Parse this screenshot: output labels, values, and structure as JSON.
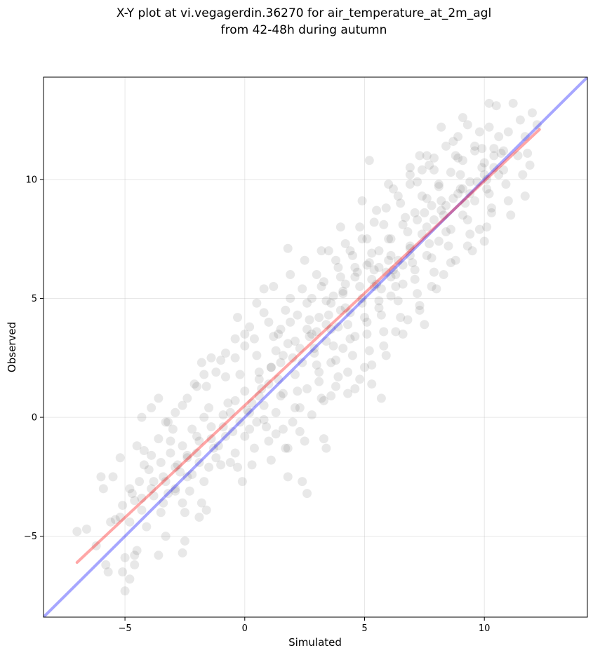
{
  "chart_data": {
    "type": "scatter",
    "title_line1": "X-Y plot at vi.vegagerdin.36270 for air_temperature_at_2m_agl",
    "title_line2": "from 42-48h during autumn",
    "xlabel": "Simulated",
    "ylabel": "Observed",
    "xlim": [
      -8.4,
      14.3
    ],
    "ylim": [
      -8.4,
      14.3
    ],
    "xticks": [
      -5,
      0,
      5,
      10
    ],
    "yticks": [
      -5,
      0,
      5,
      10
    ],
    "xtick_labels": [
      "−5",
      "0",
      "5",
      "10"
    ],
    "ytick_labels": [
      "−5",
      "0",
      "5",
      "10"
    ],
    "grid": true,
    "point_color": "#000000",
    "point_alpha": 0.09,
    "one_to_one_line": {
      "color": "#0000ff",
      "x": [
        -8.4,
        14.3
      ],
      "y": [
        -8.4,
        14.3
      ]
    },
    "fit_line": {
      "color": "#ff0000",
      "x": [
        -7.0,
        12.3
      ],
      "y": [
        -6.1,
        12.1
      ]
    },
    "points": [
      [
        -7.0,
        -4.8
      ],
      [
        -6.6,
        -4.7
      ],
      [
        -6.2,
        -5.4
      ],
      [
        -5.8,
        -6.2
      ],
      [
        -5.7,
        -6.5
      ],
      [
        -6.0,
        -2.5
      ],
      [
        -5.5,
        -2.5
      ],
      [
        -5.9,
        -3.0
      ],
      [
        -5.6,
        -4.4
      ],
      [
        -5.2,
        -4.2
      ],
      [
        -5.0,
        -5.9
      ],
      [
        -5.1,
        -6.5
      ],
      [
        -4.8,
        -6.8
      ],
      [
        -5.0,
        -7.3
      ],
      [
        -4.6,
        -6.2
      ],
      [
        -4.5,
        -5.6
      ],
      [
        -4.6,
        -5.8
      ],
      [
        -5.2,
        -1.7
      ],
      [
        -4.8,
        -3.0
      ],
      [
        -4.6,
        -3.5
      ],
      [
        -4.5,
        -1.2
      ],
      [
        -4.3,
        -3.4
      ],
      [
        -4.1,
        -4.6
      ],
      [
        -4.2,
        -1.4
      ],
      [
        -4.0,
        -2.2
      ],
      [
        -3.9,
        -3.0
      ],
      [
        -3.8,
        -2.7
      ],
      [
        -4.3,
        0.0
      ],
      [
        -3.9,
        0.4
      ],
      [
        -3.6,
        0.8
      ],
      [
        -3.5,
        -1.9
      ],
      [
        -3.4,
        -2.5
      ],
      [
        -3.6,
        -5.8
      ],
      [
        -3.3,
        -5.0
      ],
      [
        -3.5,
        -4.0
      ],
      [
        -3.2,
        -3.2
      ],
      [
        -3.1,
        -1.0
      ],
      [
        -3.3,
        -0.2
      ],
      [
        -3.0,
        -0.5
      ],
      [
        -3.1,
        -1.5
      ],
      [
        -2.8,
        -2.0
      ],
      [
        -2.9,
        -3.0
      ],
      [
        -2.6,
        -3.6
      ],
      [
        -2.5,
        -4.0
      ],
      [
        -2.7,
        -2.3
      ],
      [
        -2.4,
        -1.7
      ],
      [
        -2.6,
        -1.2
      ],
      [
        -2.5,
        -5.2
      ],
      [
        -2.6,
        -5.7
      ],
      [
        -2.3,
        -3.1
      ],
      [
        -2.2,
        -2.4
      ],
      [
        -2.0,
        -1.5
      ],
      [
        -2.2,
        -0.5
      ],
      [
        -2.0,
        -0.8
      ],
      [
        -1.8,
        -3.6
      ],
      [
        -1.7,
        -2.7
      ],
      [
        -1.6,
        -3.9
      ],
      [
        -1.9,
        -4.2
      ],
      [
        -2.4,
        0.8
      ],
      [
        -2.1,
        1.4
      ],
      [
        -1.8,
        2.3
      ],
      [
        -1.6,
        1.3
      ],
      [
        -1.5,
        0.4
      ],
      [
        -1.7,
        0.0
      ],
      [
        -1.4,
        -0.9
      ],
      [
        -1.2,
        -1.7
      ],
      [
        -1.5,
        -2.1
      ],
      [
        -1.1,
        -1.2
      ],
      [
        -1.0,
        -2.0
      ],
      [
        -0.9,
        -0.4
      ],
      [
        -1.2,
        1.9
      ],
      [
        -1.0,
        2.4
      ],
      [
        -0.8,
        1.7
      ],
      [
        -0.7,
        0.6
      ],
      [
        -0.6,
        0.2
      ],
      [
        -0.5,
        -0.6
      ],
      [
        -0.4,
        -1.5
      ],
      [
        -0.3,
        -2.1
      ],
      [
        -0.6,
        -1.9
      ],
      [
        -0.2,
        -0.2
      ],
      [
        -0.4,
        2.5
      ],
      [
        -0.2,
        1.8
      ],
      [
        0.0,
        1.1
      ],
      [
        0.1,
        0.3
      ],
      [
        0.2,
        -0.5
      ],
      [
        0.0,
        -0.8
      ],
      [
        -0.1,
        -2.7
      ],
      [
        0.3,
        -2.0
      ],
      [
        0.4,
        -1.3
      ],
      [
        0.5,
        -0.2
      ],
      [
        0.0,
        3.0
      ],
      [
        0.2,
        3.8
      ],
      [
        0.4,
        3.3
      ],
      [
        0.5,
        2.6
      ],
      [
        0.6,
        1.9
      ],
      [
        0.7,
        1.2
      ],
      [
        0.8,
        0.5
      ],
      [
        0.9,
        -0.4
      ],
      [
        1.0,
        -1.0
      ],
      [
        1.1,
        -1.8
      ],
      [
        0.8,
        4.4
      ],
      [
        1.0,
        4.0
      ],
      [
        1.2,
        3.4
      ],
      [
        1.3,
        2.8
      ],
      [
        1.1,
        2.1
      ],
      [
        1.4,
        1.6
      ],
      [
        1.5,
        0.9
      ],
      [
        1.3,
        0.2
      ],
      [
        1.6,
        -0.5
      ],
      [
        1.7,
        -1.3
      ],
      [
        1.8,
        -2.5
      ],
      [
        1.9,
        5.0
      ],
      [
        1.7,
        4.5
      ],
      [
        1.5,
        3.7
      ],
      [
        1.8,
        3.1
      ],
      [
        2.0,
        2.5
      ],
      [
        2.1,
        1.8
      ],
      [
        2.2,
        1.1
      ],
      [
        2.3,
        0.4
      ],
      [
        2.0,
        -0.2
      ],
      [
        2.5,
        -1.0
      ],
      [
        2.4,
        -2.7
      ],
      [
        2.6,
        -3.2
      ],
      [
        2.4,
        5.4
      ],
      [
        2.6,
        4.8
      ],
      [
        2.7,
        4.1
      ],
      [
        2.8,
        3.5
      ],
      [
        2.9,
        2.9
      ],
      [
        3.0,
        2.2
      ],
      [
        3.1,
        1.5
      ],
      [
        3.2,
        0.8
      ],
      [
        3.3,
        -0.9
      ],
      [
        3.4,
        -1.3
      ],
      [
        3.0,
        6.0
      ],
      [
        3.2,
        5.5
      ],
      [
        3.4,
        4.9
      ],
      [
        3.5,
        4.3
      ],
      [
        3.6,
        3.7
      ],
      [
        3.7,
        3.0
      ],
      [
        3.8,
        2.4
      ],
      [
        3.9,
        1.7
      ],
      [
        3.6,
        0.9
      ],
      [
        3.5,
        7.0
      ],
      [
        3.8,
        6.6
      ],
      [
        4.0,
        5.9
      ],
      [
        4.1,
        5.2
      ],
      [
        4.2,
        4.6
      ],
      [
        4.3,
        3.9
      ],
      [
        4.4,
        3.3
      ],
      [
        4.5,
        2.6
      ],
      [
        4.3,
        1.9
      ],
      [
        4.6,
        1.2
      ],
      [
        4.2,
        7.3
      ],
      [
        4.5,
        6.8
      ],
      [
        4.7,
        6.1
      ],
      [
        4.8,
        5.5
      ],
      [
        4.9,
        4.8
      ],
      [
        5.0,
        4.2
      ],
      [
        5.1,
        3.5
      ],
      [
        5.2,
        2.8
      ],
      [
        5.0,
        2.1
      ],
      [
        5.3,
        1.4
      ],
      [
        4.8,
        8.0
      ],
      [
        5.1,
        7.5
      ],
      [
        5.3,
        6.9
      ],
      [
        5.4,
        6.2
      ],
      [
        5.5,
        5.6
      ],
      [
        5.6,
        4.9
      ],
      [
        5.7,
        4.3
      ],
      [
        5.8,
        3.6
      ],
      [
        5.9,
        2.6
      ],
      [
        5.7,
        0.8
      ],
      [
        5.5,
        8.7
      ],
      [
        5.8,
        8.1
      ],
      [
        6.0,
        7.5
      ],
      [
        6.1,
        6.8
      ],
      [
        6.2,
        6.2
      ],
      [
        6.3,
        5.5
      ],
      [
        6.4,
        4.9
      ],
      [
        6.5,
        4.2
      ],
      [
        6.6,
        3.5
      ],
      [
        6.2,
        9.6
      ],
      [
        6.5,
        9.0
      ],
      [
        6.7,
        8.4
      ],
      [
        6.8,
        7.8
      ],
      [
        6.9,
        7.1
      ],
      [
        7.0,
        6.5
      ],
      [
        7.1,
        5.8
      ],
      [
        7.2,
        5.2
      ],
      [
        7.3,
        4.5
      ],
      [
        7.5,
        3.9
      ],
      [
        6.9,
        10.5
      ],
      [
        7.2,
        9.9
      ],
      [
        7.4,
        9.3
      ],
      [
        7.5,
        8.6
      ],
      [
        7.6,
        8.0
      ],
      [
        7.7,
        7.3
      ],
      [
        7.8,
        6.7
      ],
      [
        7.9,
        6.1
      ],
      [
        8.0,
        5.4
      ],
      [
        7.6,
        11.0
      ],
      [
        7.9,
        10.4
      ],
      [
        8.1,
        9.8
      ],
      [
        8.2,
        9.1
      ],
      [
        8.3,
        8.5
      ],
      [
        8.4,
        7.8
      ],
      [
        8.5,
        7.2
      ],
      [
        8.6,
        6.5
      ],
      [
        8.7,
        11.6
      ],
      [
        8.9,
        10.9
      ],
      [
        9.0,
        10.2
      ],
      [
        9.1,
        9.6
      ],
      [
        9.2,
        9.0
      ],
      [
        9.3,
        8.3
      ],
      [
        9.4,
        7.7
      ],
      [
        9.5,
        7.0
      ],
      [
        9.8,
        12.0
      ],
      [
        9.9,
        11.3
      ],
      [
        10.0,
        10.7
      ],
      [
        10.1,
        10.0
      ],
      [
        10.2,
        9.4
      ],
      [
        10.3,
        8.8
      ],
      [
        10.1,
        8.0
      ],
      [
        10.0,
        7.4
      ],
      [
        10.6,
        11.8
      ],
      [
        10.7,
        11.1
      ],
      [
        10.8,
        10.4
      ],
      [
        10.9,
        9.8
      ],
      [
        11.0,
        9.1
      ],
      [
        11.1,
        8.5
      ],
      [
        10.2,
        13.2
      ],
      [
        10.5,
        13.1
      ],
      [
        11.2,
        13.2
      ],
      [
        11.5,
        12.5
      ],
      [
        11.7,
        11.8
      ],
      [
        11.8,
        11.1
      ],
      [
        11.9,
        10.6
      ],
      [
        11.7,
        9.3
      ],
      [
        12.0,
        12.8
      ],
      [
        12.2,
        12.3
      ],
      [
        8.2,
        12.2
      ],
      [
        9.1,
        12.6
      ],
      [
        10.2,
        12.2
      ],
      [
        11.0,
        12.0
      ],
      [
        11.4,
        11.0
      ],
      [
        11.6,
        10.2
      ],
      [
        10.4,
        11.3
      ],
      [
        9.6,
        11.2
      ],
      [
        8.8,
        11.0
      ],
      [
        7.3,
        11.0
      ],
      [
        7.7,
        10.6
      ],
      [
        6.9,
        10.2
      ],
      [
        6.0,
        9.8
      ],
      [
        5.2,
        10.8
      ],
      [
        4.9,
        9.1
      ],
      [
        4.0,
        8.0
      ],
      [
        3.2,
        7.0
      ],
      [
        2.5,
        6.6
      ],
      [
        1.9,
        6.0
      ],
      [
        1.8,
        7.1
      ],
      [
        1.2,
        5.5
      ],
      [
        0.8,
        5.4
      ],
      [
        0.5,
        4.8
      ],
      [
        -0.3,
        4.2
      ],
      [
        0.0,
        3.5
      ],
      [
        -0.4,
        3.3
      ],
      [
        -0.8,
        2.7
      ],
      [
        -1.4,
        2.5
      ],
      [
        -1.7,
        1.8
      ],
      [
        -2.0,
        1.3
      ],
      [
        -2.6,
        0.5
      ],
      [
        -2.9,
        0.2
      ],
      [
        -3.2,
        -0.2
      ],
      [
        -3.6,
        -0.9
      ],
      [
        -3.9,
        -1.6
      ],
      [
        -4.2,
        -2.0
      ],
      [
        -4.4,
        -2.7
      ],
      [
        -4.7,
        -3.2
      ],
      [
        -5.1,
        -3.7
      ],
      [
        -5.4,
        -4.3
      ],
      [
        2.2,
        4.3
      ],
      [
        2.8,
        5.0
      ],
      [
        3.3,
        5.7
      ],
      [
        3.9,
        6.3
      ],
      [
        4.4,
        7.0
      ],
      [
        4.9,
        7.5
      ],
      [
        5.4,
        8.2
      ],
      [
        5.9,
        8.8
      ],
      [
        6.4,
        9.3
      ],
      [
        6.9,
        9.8
      ],
      [
        7.4,
        10.4
      ],
      [
        7.9,
        10.9
      ],
      [
        8.4,
        11.4
      ],
      [
        8.9,
        11.8
      ],
      [
        9.3,
        12.3
      ],
      [
        1.6,
        2.6
      ],
      [
        2.1,
        3.2
      ],
      [
        2.6,
        3.7
      ],
      [
        3.1,
        4.2
      ],
      [
        3.6,
        4.8
      ],
      [
        4.1,
        5.3
      ],
      [
        4.6,
        5.9
      ],
      [
        5.1,
        6.4
      ],
      [
        5.6,
        7.0
      ],
      [
        6.1,
        7.5
      ],
      [
        6.6,
        8.1
      ],
      [
        7.1,
        8.6
      ],
      [
        7.6,
        9.2
      ],
      [
        8.1,
        9.7
      ],
      [
        8.6,
        10.3
      ],
      [
        9.1,
        10.8
      ],
      [
        9.6,
        11.4
      ],
      [
        0.6,
        1.6
      ],
      [
        1.1,
        2.1
      ],
      [
        1.6,
        1.0
      ],
      [
        2.1,
        0.4
      ],
      [
        2.6,
        1.2
      ],
      [
        3.1,
        1.9
      ],
      [
        3.6,
        2.3
      ],
      [
        4.1,
        2.9
      ],
      [
        4.6,
        3.4
      ],
      [
        5.1,
        4.0
      ],
      [
        5.6,
        4.6
      ],
      [
        6.1,
        5.1
      ],
      [
        6.6,
        5.6
      ],
      [
        7.1,
        6.2
      ],
      [
        7.6,
        6.8
      ],
      [
        8.1,
        7.4
      ],
      [
        8.6,
        7.9
      ],
      [
        9.1,
        8.5
      ],
      [
        9.6,
        9.1
      ],
      [
        10.1,
        9.6
      ],
      [
        10.6,
        10.2
      ],
      [
        0.3,
        0.6
      ],
      [
        0.8,
        -0.1
      ],
      [
        1.3,
        -0.7
      ],
      [
        1.8,
        -1.3
      ],
      [
        2.3,
        -0.6
      ],
      [
        2.8,
        0.1
      ],
      [
        3.3,
        0.7
      ],
      [
        3.8,
        1.3
      ],
      [
        4.3,
        1.0
      ],
      [
        4.8,
        1.6
      ],
      [
        5.3,
        2.2
      ],
      [
        5.8,
        3.0
      ],
      [
        6.3,
        3.6
      ],
      [
        6.8,
        4.1
      ],
      [
        7.3,
        4.7
      ],
      [
        7.8,
        5.5
      ],
      [
        8.3,
        6.0
      ],
      [
        8.8,
        6.6
      ],
      [
        9.3,
        7.2
      ],
      [
        9.8,
        7.9
      ],
      [
        10.3,
        8.6
      ],
      [
        -0.8,
        -0.8
      ],
      [
        -1.3,
        -1.3
      ],
      [
        -1.9,
        -1.9
      ],
      [
        -2.4,
        -2.5
      ],
      [
        -2.9,
        -3.1
      ],
      [
        -3.4,
        -3.6
      ],
      [
        -0.4,
        0.7
      ],
      [
        -0.9,
        0.1
      ],
      [
        -1.4,
        -0.4
      ],
      [
        -1.9,
        -1.0
      ],
      [
        -2.4,
        -1.6
      ],
      [
        -2.9,
        -2.1
      ],
      [
        -3.3,
        -2.7
      ],
      [
        -3.8,
        -3.3
      ],
      [
        -4.3,
        -3.9
      ],
      [
        -4.8,
        -4.4
      ],
      [
        1.4,
        3.5
      ],
      [
        1.9,
        4.0
      ],
      [
        2.4,
        2.3
      ],
      [
        2.9,
        2.7
      ],
      [
        3.4,
        3.2
      ],
      [
        3.9,
        3.8
      ],
      [
        4.4,
        4.4
      ],
      [
        4.9,
        5.0
      ],
      [
        5.4,
        5.5
      ],
      [
        5.9,
        6.1
      ],
      [
        6.4,
        6.6
      ],
      [
        6.9,
        7.2
      ],
      [
        7.4,
        7.7
      ],
      [
        7.9,
        8.3
      ],
      [
        8.4,
        8.9
      ],
      [
        8.9,
        9.4
      ],
      [
        9.4,
        9.9
      ],
      [
        9.9,
        10.5
      ],
      [
        10.4,
        11.0
      ],
      [
        5.2,
        6.5
      ],
      [
        5.6,
        6.3
      ],
      [
        6.0,
        6.6
      ],
      [
        6.3,
        6.0
      ],
      [
        6.6,
        6.4
      ],
      [
        6.9,
        6.8
      ],
      [
        5.3,
        5.8
      ],
      [
        5.7,
        5.4
      ],
      [
        6.1,
        5.9
      ],
      [
        4.6,
        6.3
      ],
      [
        4.2,
        5.6
      ],
      [
        3.7,
        5.1
      ],
      [
        4.0,
        4.5
      ],
      [
        3.4,
        3.9
      ],
      [
        2.7,
        3.4
      ],
      [
        2.3,
        2.9
      ],
      [
        1.5,
        2.3
      ],
      [
        1.0,
        1.4
      ],
      [
        0.6,
        0.9
      ],
      [
        0.2,
        0.2
      ],
      [
        3.0,
        3.6
      ],
      [
        7.2,
        8.3
      ],
      [
        7.8,
        8.9
      ],
      [
        8.2,
        8.7
      ],
      [
        8.7,
        9.2
      ],
      [
        9.0,
        9.6
      ],
      [
        9.4,
        9.4
      ],
      [
        9.7,
        9.9
      ],
      [
        10.0,
        10.2
      ],
      [
        10.4,
        10.5
      ],
      [
        10.8,
        11.2
      ]
    ]
  }
}
